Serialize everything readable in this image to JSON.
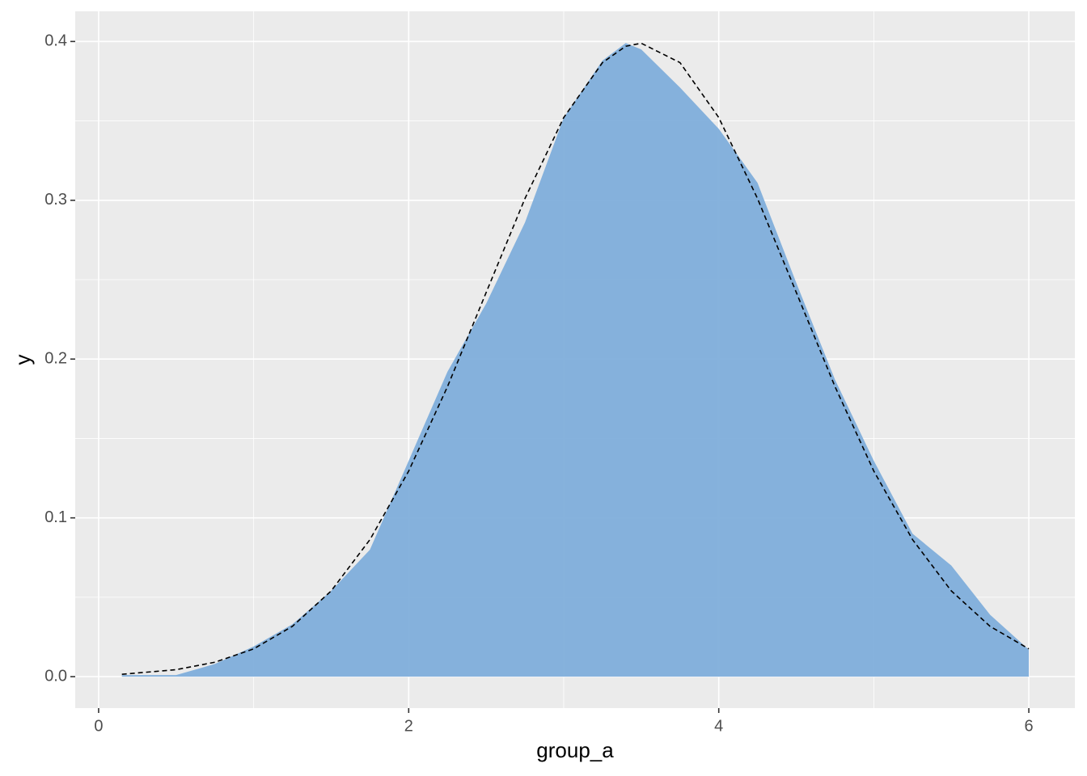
{
  "chart_data": {
    "type": "area",
    "x_label": "group_a",
    "y_label": "y",
    "x": [
      0.15,
      0.5,
      0.75,
      1,
      1.25,
      1.5,
      1.75,
      2,
      2.25,
      2.5,
      2.75,
      3,
      3.25,
      3.4,
      3.5,
      3.75,
      4,
      4.25,
      4.5,
      4.75,
      5,
      5.25,
      5.5,
      5.75,
      6
    ],
    "series": [
      {
        "type": "area",
        "color": "#80aedb",
        "values": [
          0.001,
          0.001,
          0.008,
          0.019,
          0.033,
          0.054,
          0.08,
          0.136,
          0.192,
          0.235,
          0.286,
          0.352,
          0.388,
          0.399,
          0.395,
          0.371,
          0.345,
          0.311,
          0.248,
          0.187,
          0.136,
          0.09,
          0.07,
          0.039,
          0.017
        ]
      },
      {
        "type": "line",
        "color": "#000000",
        "dashed": true,
        "values": [
          0.0015,
          0.0044,
          0.0091,
          0.0175,
          0.0317,
          0.054,
          0.0863,
          0.1295,
          0.1826,
          0.242,
          0.3011,
          0.3521,
          0.3867,
          0.397,
          0.3989,
          0.3867,
          0.3521,
          0.3011,
          0.242,
          0.1826,
          0.1295,
          0.0863,
          0.054,
          0.0317,
          0.0175
        ]
      }
    ],
    "xlim": [
      -0.151,
      6.297
    ],
    "ylim": [
      -0.0198,
      0.419
    ],
    "xticks": [
      0,
      2,
      4,
      6
    ],
    "yticks": [
      {
        "value": 0,
        "label": "0.0"
      },
      0.1,
      0.2,
      0.3,
      0.4
    ],
    "grid": true
  }
}
